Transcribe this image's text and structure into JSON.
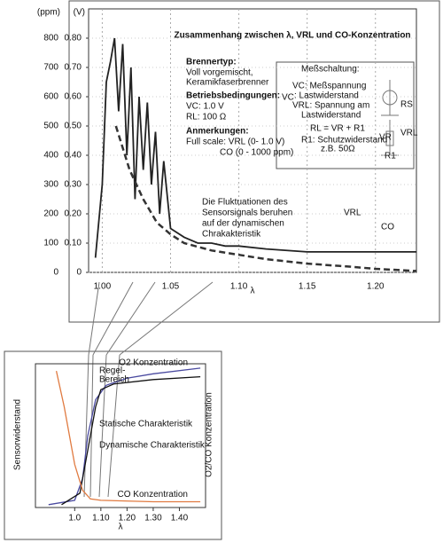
{
  "chart_data": [
    {
      "type": "line",
      "title": "Zusammenhang zwischen λ, VRL und CO-Konzentration",
      "x_label": "λ",
      "y_label": "(ppm)",
      "y2_label": "(V)",
      "xlim": [
        0.99,
        1.23
      ],
      "xticks": [
        {
          "value": 1.0,
          "label": "1.00"
        },
        1.05,
        {
          "value": 1.1,
          "label": "1.10"
        },
        1.15,
        {
          "value": 1.2,
          "label": "1.20"
        }
      ],
      "ylim": [
        0,
        900
      ],
      "yticks": [
        0,
        100,
        200,
        300,
        400,
        500,
        600,
        700,
        800
      ],
      "y2lim": [
        0,
        0.9
      ],
      "y2ticks": [
        0,
        {
          "value": 0.1,
          "label": "0.10"
        },
        {
          "value": 0.2,
          "label": "0.20"
        },
        {
          "value": 0.3,
          "label": "0.30"
        },
        {
          "value": 0.4,
          "label": "0.40"
        },
        {
          "value": 0.5,
          "label": "0.50"
        },
        {
          "value": 0.6,
          "label": "0.60"
        },
        {
          "value": 0.7,
          "label": "0.70"
        },
        {
          "value": 0.8,
          "label": "0.80"
        }
      ],
      "grid": true,
      "series": [
        {
          "name": "VRL",
          "color": "#222222",
          "axis": "y2",
          "x": [
            0.995,
            1.0,
            1.003,
            1.006,
            1.009,
            1.012,
            1.015,
            1.018,
            1.021,
            1.024,
            1.027,
            1.03,
            1.033,
            1.036,
            1.039,
            1.042,
            1.045,
            1.05,
            1.06,
            1.07,
            1.08,
            1.09,
            1.1,
            1.12,
            1.15,
            1.18,
            1.2,
            1.23
          ],
          "values": [
            0.05,
            0.3,
            0.65,
            0.72,
            0.8,
            0.55,
            0.78,
            0.4,
            0.7,
            0.25,
            0.6,
            0.35,
            0.58,
            0.3,
            0.48,
            0.2,
            0.38,
            0.15,
            0.12,
            0.1,
            0.1,
            0.09,
            0.09,
            0.08,
            0.07,
            0.07,
            0.07,
            0.07
          ]
        },
        {
          "name": "CO",
          "color": "#333333",
          "axis": "y",
          "dashed": true,
          "x": [
            1.01,
            1.02,
            1.03,
            1.04,
            1.05,
            1.06,
            1.08,
            1.1,
            1.12,
            1.15,
            1.18,
            1.2,
            1.23
          ],
          "values": [
            500,
            350,
            250,
            170,
            130,
            100,
            75,
            60,
            45,
            30,
            20,
            12,
            5
          ]
        }
      ],
      "annotations": [
        "Brennertyp:",
        "Voll vorgemischt,",
        "Keramikfaserbrenner",
        "Betriebsbedingungen:",
        "VC: 1.0 V",
        "RL: 100 Ω",
        "Anmerkungen:",
        "Full scale: VRL (0- 1.0 V)",
        "CO (0 - 1000 ppm)",
        "Meßschaltung:",
        "VC: Meßspannung",
        ": Lastwiderstand",
        "VRL: Spannung am",
        "Lastwiderstand",
        "RL = VR + R1",
        "R1: Schutzwiderstand",
        "z.B. 50Ω",
        "RS",
        "VR",
        "R1",
        "VC",
        "VRL",
        "Die Fluktuationen des",
        "Sensorsignals beruhen",
        "auf der dynamischen",
        "Chrakakteristik"
      ]
    },
    {
      "type": "line",
      "x_label": "λ",
      "y_label": "Sensorwiderstand",
      "y2_label": "O2/CO Konzentration",
      "xlim": [
        0.85,
        1.5
      ],
      "xticks": [
        {
          "value": 1.0,
          "label": "1.0"
        },
        {
          "value": 1.1,
          "label": "1.10"
        },
        {
          "value": 1.2,
          "label": "1.20"
        },
        {
          "value": 1.3,
          "label": "1.30"
        },
        {
          "value": 1.4,
          "label": "1.40"
        }
      ],
      "ylim": [
        0,
        1
      ],
      "series": [
        {
          "name": "O2 Konzentration",
          "color": "#4a4aa0",
          "x": [
            0.9,
            1.0,
            1.03,
            1.05,
            1.08,
            1.12,
            1.2,
            1.3,
            1.48
          ],
          "values": [
            0.02,
            0.05,
            0.2,
            0.5,
            0.75,
            0.85,
            0.9,
            0.93,
            0.97
          ]
        },
        {
          "color": "#111111",
          "x": [
            0.95,
            1.02,
            1.05,
            1.08,
            1.1,
            1.15,
            1.3,
            1.48
          ],
          "values": [
            0.02,
            0.1,
            0.4,
            0.7,
            0.82,
            0.86,
            0.89,
            0.91
          ]
        },
        {
          "name": "CO Konzentration",
          "color": "#e07a40",
          "x": [
            0.93,
            0.96,
            1.0,
            1.03,
            1.06,
            1.1,
            1.3,
            1.48
          ],
          "values": [
            0.95,
            0.7,
            0.3,
            0.12,
            0.06,
            0.05,
            0.04,
            0.04
          ]
        }
      ],
      "annotations": [
        "Regel-",
        "Bereich",
        "Statische Charakteristik",
        "Dynamische Charakteristik"
      ]
    }
  ]
}
